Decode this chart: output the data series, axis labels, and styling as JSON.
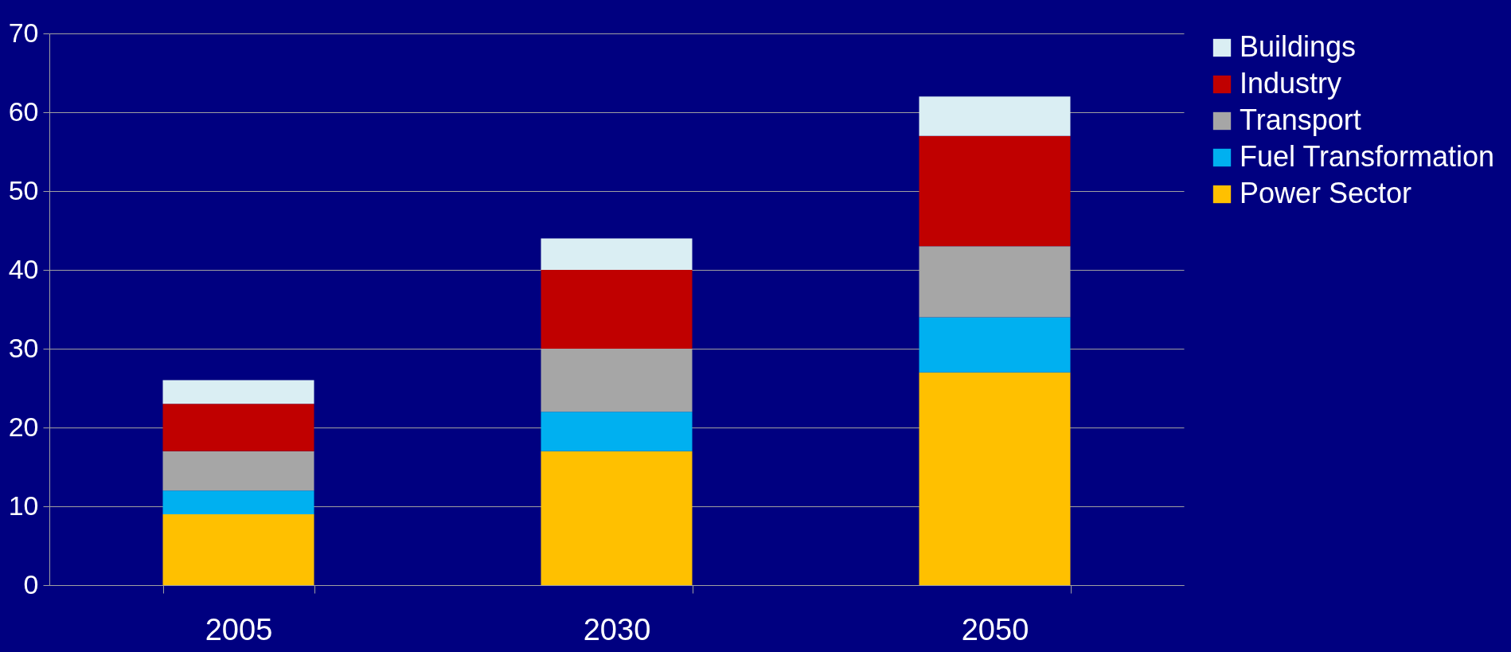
{
  "chart_data": {
    "type": "bar",
    "stacked": true,
    "categories": [
      "2005",
      "2030",
      "2050"
    ],
    "series": [
      {
        "name": "Power Sector",
        "color": "#ffc000",
        "values": [
          9,
          17,
          27
        ]
      },
      {
        "name": "Fuel Transformation",
        "color": "#00b0f0",
        "values": [
          3,
          5,
          7
        ]
      },
      {
        "name": "Transport",
        "color": "#a6a6a6",
        "values": [
          5,
          8,
          9
        ]
      },
      {
        "name": "Industry",
        "color": "#c00000",
        "values": [
          6,
          10,
          14
        ]
      },
      {
        "name": "Buildings",
        "color": "#daeef3",
        "values": [
          3,
          4,
          5
        ]
      }
    ],
    "ylim": [
      0,
      70
    ],
    "yticks": [
      0,
      10,
      20,
      30,
      40,
      50,
      60,
      70
    ],
    "grid": "y",
    "legend": "right"
  }
}
